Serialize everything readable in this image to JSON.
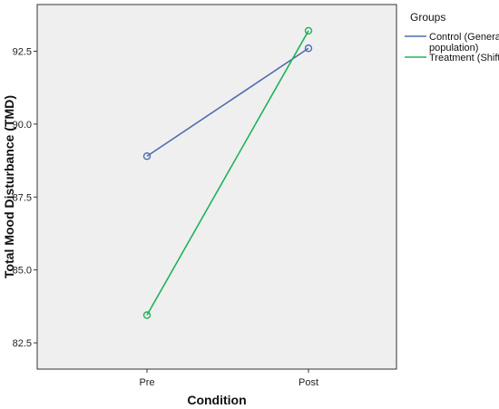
{
  "chart_data": {
    "type": "line",
    "xlabel": "Condition",
    "ylabel": "Total Mood Disturbance (TMD)",
    "categories": [
      "Pre",
      "Post"
    ],
    "ylim": [
      81.6,
      94.1
    ],
    "yticks": [
      82.5,
      85.0,
      87.5,
      90.0,
      92.5
    ],
    "ytick_labels": [
      "82.5",
      "85.0",
      "87.5",
      "90.0",
      "92.5"
    ],
    "grid": false,
    "legend_position": "right",
    "legend_title": "Groups",
    "plot_background": "#efefef",
    "series": [
      {
        "name": "Control (General population)",
        "name_lines": [
          "Control (General",
          "population)"
        ],
        "values": [
          88.9,
          92.6
        ],
        "color": "#4e6db1"
      },
      {
        "name": "Treatment (Shift)",
        "name_lines": [
          "Treatment (Shift)"
        ],
        "values": [
          83.45,
          93.2
        ],
        "color": "#20b25a"
      }
    ]
  }
}
